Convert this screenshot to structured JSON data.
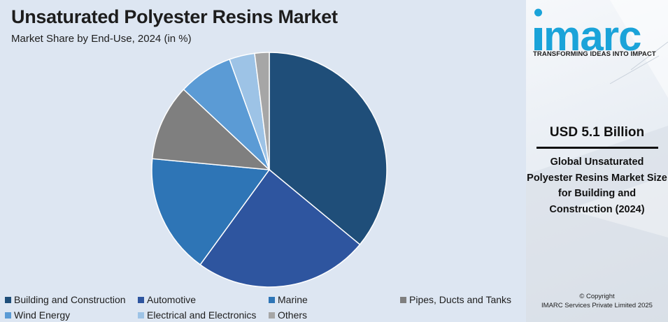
{
  "title": "Unsaturated Polyester Resins Market",
  "subtitle": "Market Share by End-Use, 2024 (in %)",
  "chart_data": {
    "type": "pie",
    "title": "Unsaturated Polyester Resins Market",
    "subtitle": "Market Share by End-Use, 2024 (in %)",
    "categories": [
      "Building and Construction",
      "Automotive",
      "Marine",
      "Pipes, Ducts and Tanks",
      "Wind Energy",
      "Electrical and Electronics",
      "Others"
    ],
    "values": [
      36,
      24,
      16.5,
      10.5,
      7.5,
      3.5,
      2
    ],
    "colors": [
      "#1f4e79",
      "#2e559f",
      "#2e75b6",
      "#7f7f7f",
      "#5b9bd5",
      "#9dc3e6",
      "#a6a6a6"
    ],
    "legend_position": "bottom"
  },
  "side_panel": {
    "logo_text": "imarc",
    "tagline": "TRANSFORMING IDEAS INTO IMPACT",
    "stat_value": "USD 5.1 Billion",
    "stat_description": "Global Unsaturated Polyester Resins Market Size for Building and Construction (2024)",
    "copyright_line1": "© Copyright",
    "copyright_line2": "IMARC Services Private Limited 2025"
  }
}
